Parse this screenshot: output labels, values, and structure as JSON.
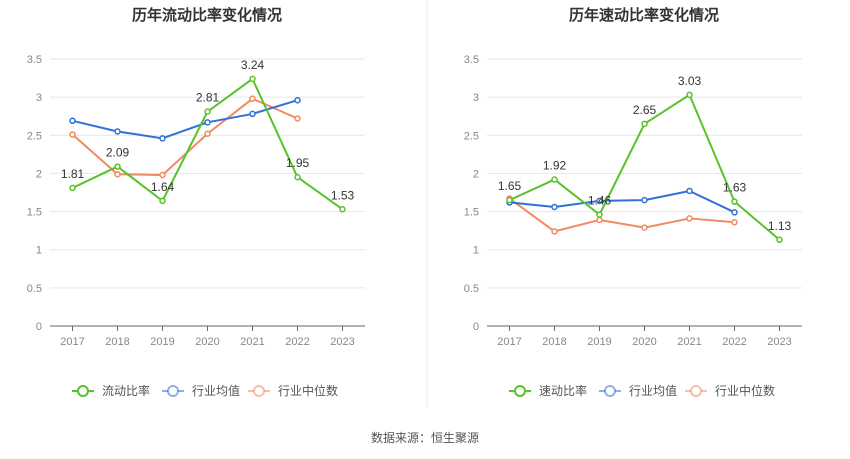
{
  "source": "数据来源：恒生聚源",
  "chart_data": [
    {
      "type": "line",
      "title": "历年流动比率变化情况",
      "categories": [
        "2017",
        "2018",
        "2019",
        "2020",
        "2021",
        "2022",
        "2023"
      ],
      "ylim": [
        0,
        3.5
      ],
      "yticks": [
        "0",
        "0.5",
        "1",
        "1.5",
        "2",
        "2.5",
        "3",
        "3.5"
      ],
      "labeled_series": 0,
      "series": [
        {
          "name": "流动比率",
          "color": "#58c22a",
          "values": [
            1.81,
            2.09,
            1.64,
            2.81,
            3.24,
            1.95,
            1.53
          ],
          "labels": [
            "1.81",
            "2.09",
            "1.64",
            "2.81",
            "3.24",
            "1.95",
            "1.53"
          ]
        },
        {
          "name": "行业均值",
          "color": "#3070d8",
          "values": [
            2.69,
            2.55,
            2.46,
            2.67,
            2.78,
            2.96,
            null
          ]
        },
        {
          "name": "行业中位数",
          "color": "#f08a60",
          "values": [
            2.51,
            1.99,
            1.98,
            2.52,
            2.98,
            2.72,
            null
          ]
        }
      ]
    },
    {
      "type": "line",
      "title": "历年速动比率变化情况",
      "categories": [
        "2017",
        "2018",
        "2019",
        "2020",
        "2021",
        "2022",
        "2023"
      ],
      "ylim": [
        0,
        3.5
      ],
      "yticks": [
        "0",
        "0.5",
        "1",
        "1.5",
        "2",
        "2.5",
        "3",
        "3.5"
      ],
      "labeled_series": 0,
      "series": [
        {
          "name": "速动比率",
          "color": "#58c22a",
          "values": [
            1.65,
            1.92,
            1.46,
            2.65,
            3.03,
            1.63,
            1.13
          ],
          "labels": [
            "1.65",
            "1.92",
            "1.46",
            "2.65",
            "3.03",
            "1.63",
            "1.13"
          ]
        },
        {
          "name": "行业均值",
          "color": "#3070d8",
          "values": [
            1.62,
            1.56,
            1.64,
            1.65,
            1.77,
            1.49,
            null
          ]
        },
        {
          "name": "行业中位数",
          "color": "#f08a60",
          "values": [
            1.67,
            1.24,
            1.39,
            1.29,
            1.41,
            1.36,
            null
          ]
        }
      ]
    }
  ]
}
